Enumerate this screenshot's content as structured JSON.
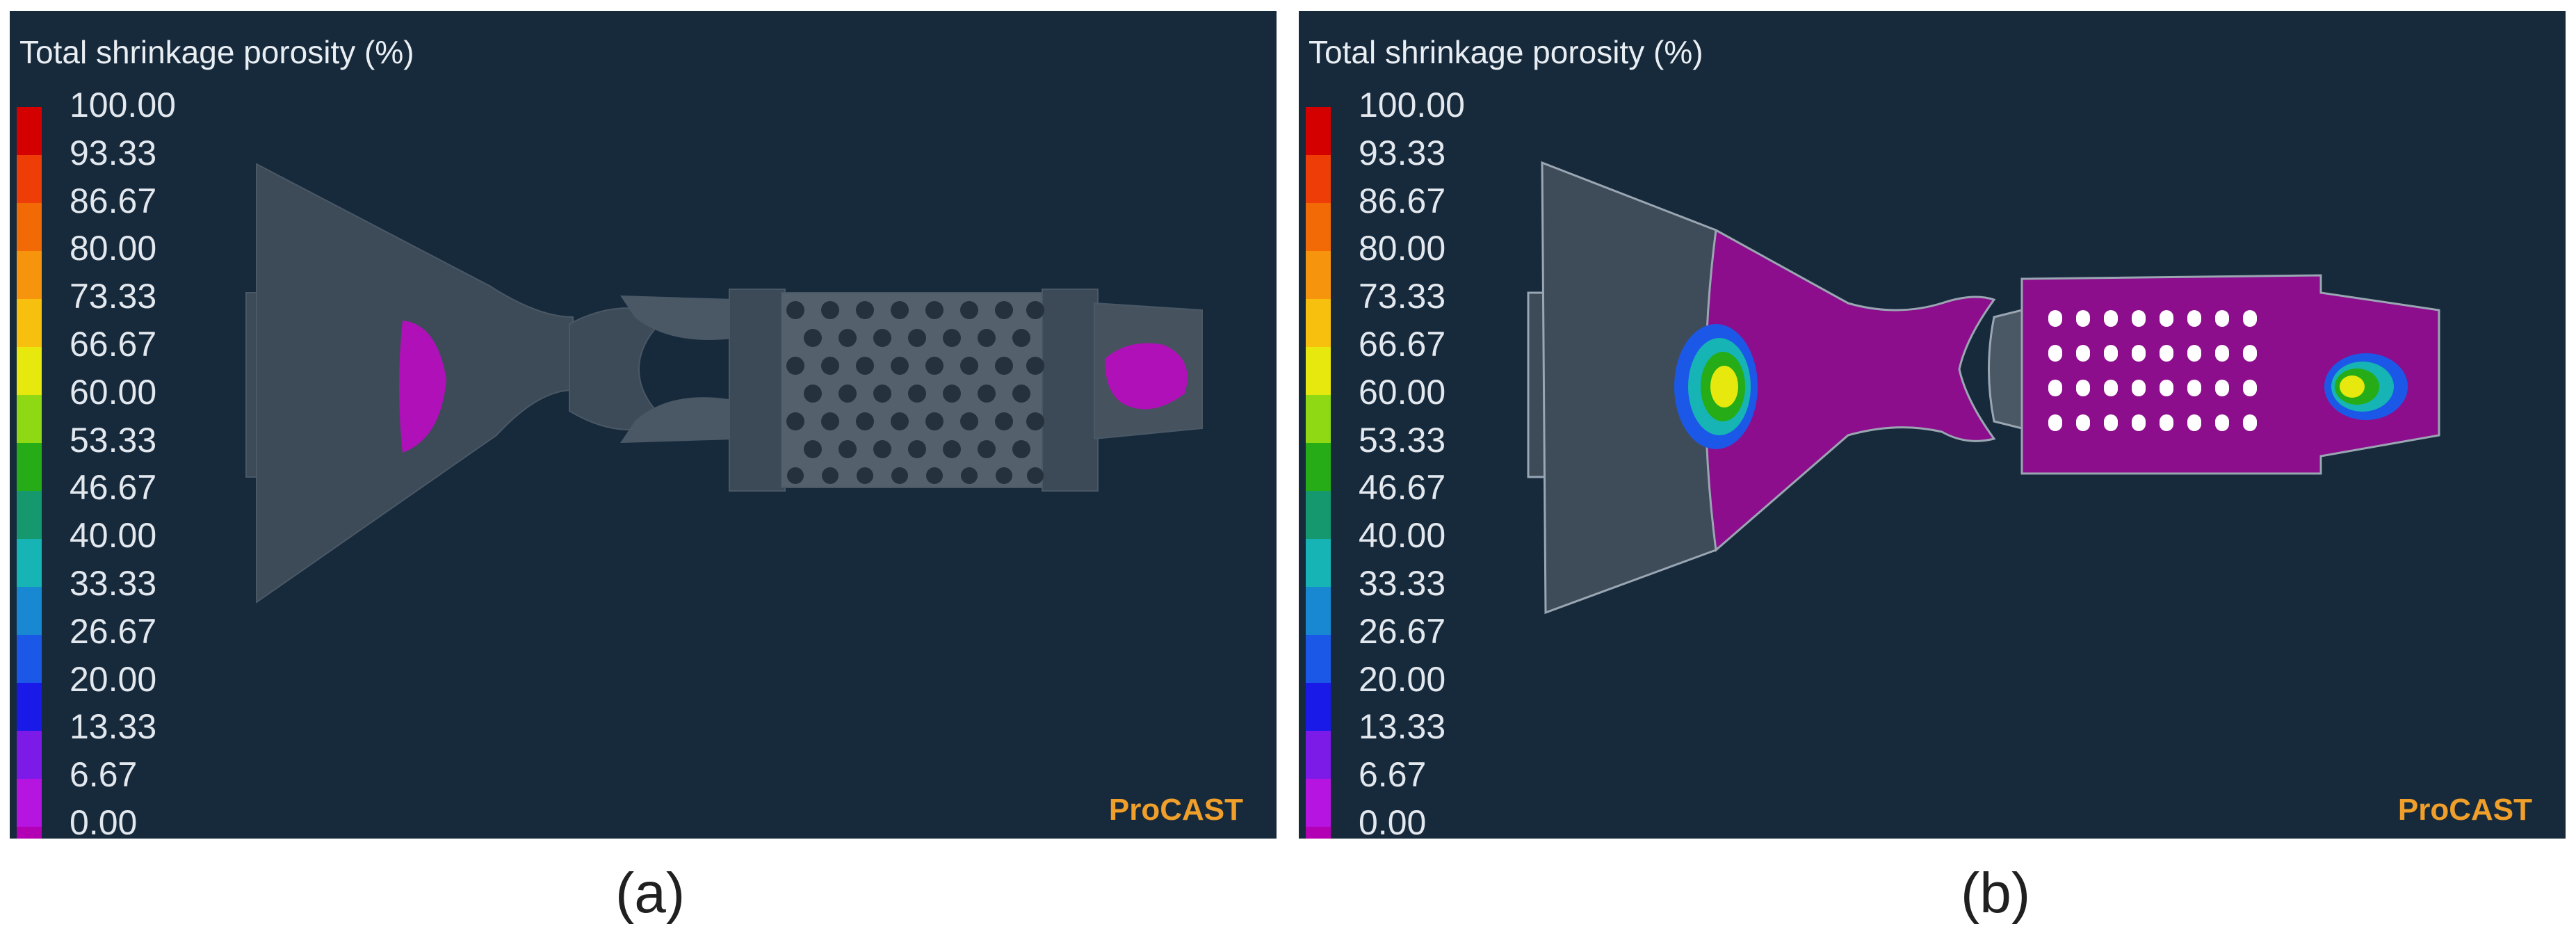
{
  "panels": [
    {
      "id": "a",
      "title": "Total shrinkage porosity (%)",
      "brand": "ProCAST",
      "caption": "(a)"
    },
    {
      "id": "b",
      "title": "Total shrinkage porosity (%)",
      "brand": "ProCAST",
      "caption": "(b)"
    }
  ],
  "legend": {
    "ticks": [
      "100.00",
      "93.33",
      "86.67",
      "80.00",
      "73.33",
      "66.67",
      "60.00",
      "53.33",
      "46.67",
      "40.00",
      "33.33",
      "26.67",
      "20.00",
      "13.33",
      "6.67",
      "0.00"
    ],
    "colors": [
      "#d40000",
      "#ee3d06",
      "#f26a06",
      "#f6940e",
      "#f8c00e",
      "#e7e80e",
      "#8ed814",
      "#25ac16",
      "#16986e",
      "#16b4b4",
      "#1888d2",
      "#1c58e8",
      "#1a1ae8",
      "#7c1ae8",
      "#b614e0",
      "#b400b4"
    ]
  },
  "colors": {
    "background": "#172a3c",
    "mold": "#3e4c5a",
    "porosity": "#b010b8",
    "brand": "#f0a02a"
  }
}
